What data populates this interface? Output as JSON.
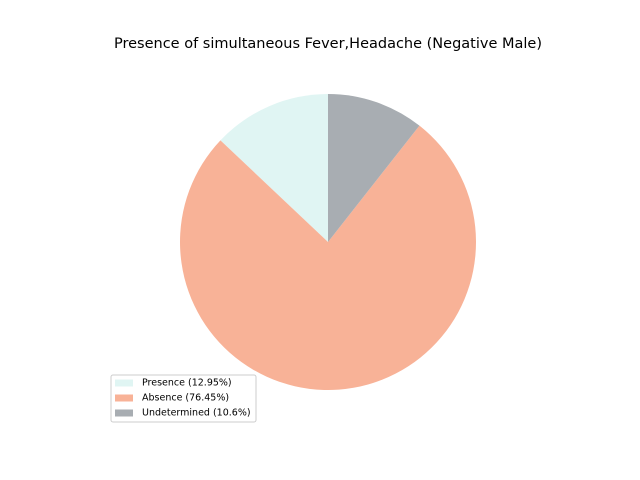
{
  "chart_data": {
    "type": "pie",
    "title": "Presence of simultaneous Fever,Headache (Negative Male)",
    "categories": [
      "Presence (12.95%)",
      "Absence (76.45%)",
      "Undetermined (10.6%)"
    ],
    "values": [
      12.95,
      76.45,
      10.6
    ],
    "colors": [
      "#e0f5f3",
      "#f8b297",
      "#a8adb2"
    ],
    "legend": "lower left"
  }
}
